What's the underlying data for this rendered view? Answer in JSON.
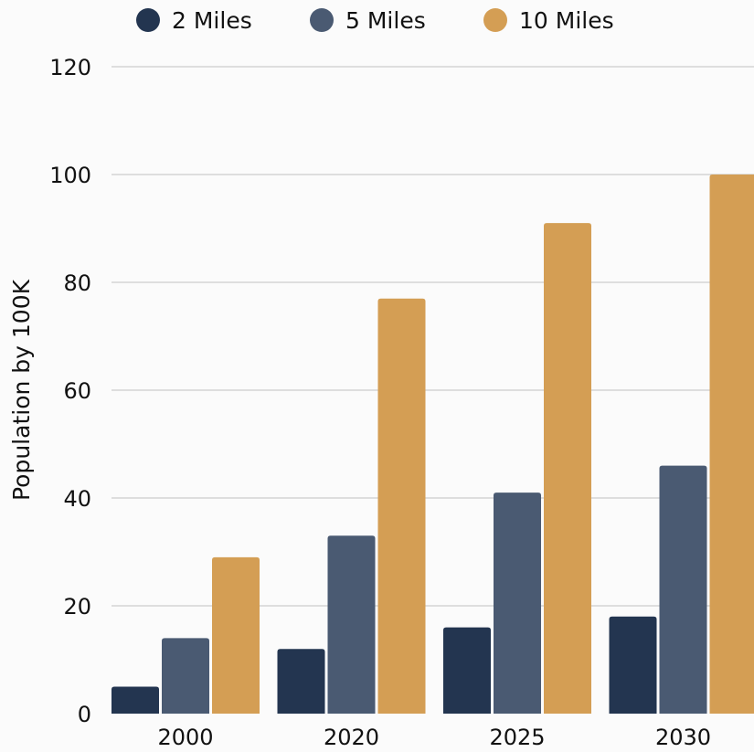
{
  "chart_data": {
    "type": "bar",
    "categories": [
      "2000",
      "2020",
      "2025",
      "2030"
    ],
    "series": [
      {
        "name": "2 Miles",
        "values": [
          5,
          12,
          16,
          18
        ],
        "color": "#233550"
      },
      {
        "name": "5 Miles",
        "values": [
          14,
          33,
          41,
          46
        ],
        "color": "#4a5a72"
      },
      {
        "name": "10 Miles",
        "values": [
          29,
          77,
          91,
          100
        ],
        "color": "#d49e54"
      }
    ],
    "title": "",
    "xlabel": "",
    "ylabel": "Population by 100K",
    "ylim": [
      0,
      120
    ],
    "yticks": [
      0,
      20,
      40,
      60,
      80,
      100,
      120
    ],
    "grid": true,
    "legend_position": "top-center",
    "colors": {
      "gridline": "#cccccc",
      "background": "#fbfbfb",
      "text": "#111111"
    }
  }
}
